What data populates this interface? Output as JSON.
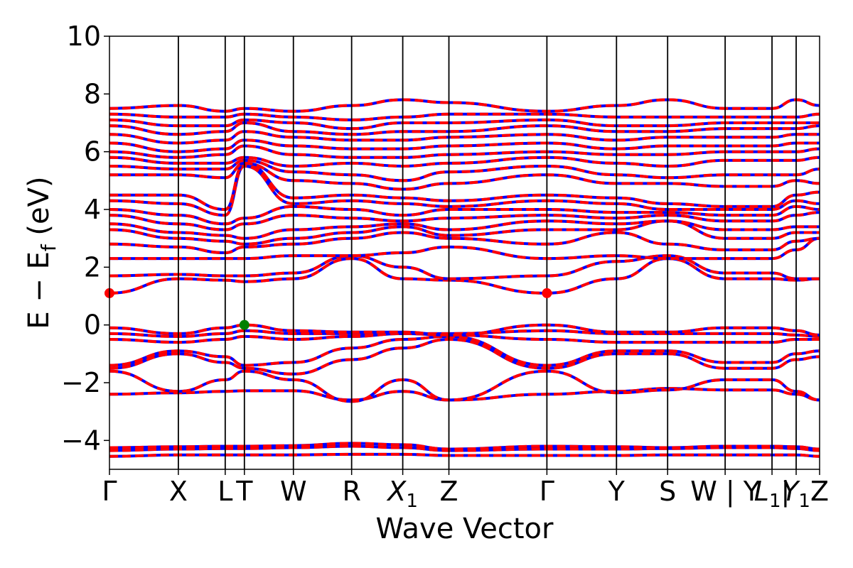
{
  "chart_data": {
    "type": "line",
    "title": "",
    "xlabel": "Wave Vector",
    "ylabel": "E − E",
    "ylabel_subscript": "f",
    "ylabel_unit": " (eV)",
    "ylim": [
      -5,
      10
    ],
    "yticks": [
      -4,
      -2,
      0,
      2,
      4,
      6,
      8,
      10
    ],
    "ytick_labels": [
      "−4",
      "−2",
      "0",
      "2",
      "4",
      "6",
      "8",
      "10"
    ],
    "grid": false,
    "legend": "none",
    "kpath": [
      {
        "label": "Γ",
        "base": "Γ",
        "sub": "",
        "x": 0.0
      },
      {
        "label": "X",
        "base": "X",
        "sub": "",
        "x": 0.097
      },
      {
        "label": "L",
        "base": "L",
        "sub": "",
        "x": 0.163
      },
      {
        "label": "T",
        "base": "T",
        "sub": "",
        "x": 0.19
      },
      {
        "label": "W",
        "base": "W",
        "sub": "",
        "x": 0.259
      },
      {
        "label": "R",
        "base": "R",
        "sub": "",
        "x": 0.341
      },
      {
        "label": "X1",
        "base": "X",
        "sub": "1",
        "x": 0.413
      },
      {
        "label": "Z",
        "base": "Z",
        "sub": "",
        "x": 0.478
      },
      {
        "label": "Γ",
        "base": "Γ",
        "sub": "",
        "x": 0.616
      },
      {
        "label": "Y",
        "base": "Y",
        "sub": "",
        "x": 0.714
      },
      {
        "label": "S",
        "base": "S",
        "sub": "",
        "x": 0.786
      },
      {
        "label": "W | Y",
        "base": "W | Y",
        "sub": "",
        "x": 0.867
      },
      {
        "label": "L1 |",
        "base": "L",
        "sub": "1",
        "suffix": "|",
        "x": 0.933
      },
      {
        "label": "Y1",
        "base": "Y",
        "sub": "1",
        "x": 0.967
      },
      {
        "label": "Z",
        "base": "Z",
        "sub": "",
        "x": 1.0
      }
    ],
    "bands": [
      [
        -4.55,
        -4.5,
        -4.5,
        -4.5,
        -4.5,
        -4.48,
        -4.48,
        -4.52,
        -4.52,
        -4.52,
        -4.5,
        -4.5,
        -4.5,
        -4.5,
        -4.55
      ],
      [
        -4.35,
        -4.3,
        -4.28,
        -4.28,
        -4.25,
        -4.2,
        -4.25,
        -4.35,
        -4.3,
        -4.3,
        -4.28,
        -4.25,
        -4.25,
        -4.28,
        -4.35
      ],
      [
        -4.25,
        -4.22,
        -4.2,
        -4.2,
        -4.18,
        -4.1,
        -4.15,
        -4.3,
        -4.2,
        -4.22,
        -4.25,
        -4.2,
        -4.2,
        -4.22,
        -4.3
      ],
      [
        -2.4,
        -2.35,
        -2.3,
        -2.28,
        -2.28,
        -2.6,
        -2.3,
        -2.6,
        -2.4,
        -2.3,
        -2.2,
        -2.25,
        -2.25,
        -2.4,
        -2.6
      ],
      [
        -1.6,
        -2.3,
        -1.9,
        -1.6,
        -1.9,
        -2.65,
        -1.9,
        -2.6,
        -1.6,
        -2.35,
        -2.25,
        -1.9,
        -1.9,
        -2.3,
        -2.6
      ],
      [
        -1.5,
        -1.0,
        -1.3,
        -1.5,
        -1.7,
        -1.2,
        -0.8,
        -0.5,
        -1.5,
        -1.0,
        -1.0,
        -1.5,
        -1.5,
        -1.2,
        -1.1
      ],
      [
        -1.4,
        -0.9,
        -1.1,
        -1.4,
        -1.3,
        -0.8,
        -0.5,
        -0.4,
        -1.4,
        -0.9,
        -0.9,
        -1.3,
        -1.3,
        -1.0,
        -0.9
      ],
      [
        -0.5,
        -0.6,
        -0.5,
        -0.4,
        -0.5,
        -0.4,
        -0.3,
        -0.35,
        -0.5,
        -0.6,
        -0.6,
        -0.6,
        -0.6,
        -0.5,
        -0.5
      ],
      [
        -0.3,
        -0.4,
        -0.3,
        -0.2,
        -0.3,
        -0.3,
        -0.3,
        -0.3,
        -0.2,
        -0.3,
        -0.3,
        -0.3,
        -0.3,
        -0.35,
        -0.4
      ],
      [
        -0.1,
        -0.3,
        -0.1,
        0.0,
        -0.2,
        -0.25,
        -0.25,
        -0.35,
        0.0,
        -0.25,
        -0.25,
        -0.1,
        -0.1,
        -0.2,
        -0.35
      ],
      [
        1.1,
        1.6,
        1.55,
        1.5,
        1.6,
        2.3,
        1.6,
        1.55,
        1.1,
        1.6,
        2.3,
        1.6,
        1.6,
        1.55,
        1.6
      ],
      [
        1.7,
        1.75,
        1.7,
        1.7,
        1.8,
        2.4,
        2.0,
        1.6,
        1.7,
        2.2,
        2.4,
        1.8,
        1.8,
        1.6,
        1.6
      ],
      [
        2.3,
        2.3,
        2.3,
        2.3,
        2.4,
        2.4,
        2.5,
        2.7,
        2.3,
        2.4,
        2.3,
        2.3,
        2.3,
        2.6,
        3.0
      ],
      [
        2.8,
        2.7,
        2.5,
        2.7,
        2.8,
        3.0,
        3.2,
        3.0,
        2.8,
        3.2,
        2.8,
        2.6,
        2.6,
        2.9,
        3.0
      ],
      [
        3.3,
        3.0,
        2.9,
        2.8,
        3.0,
        3.2,
        3.4,
        3.1,
        3.3,
        3.3,
        3.6,
        3.0,
        3.0,
        3.2,
        3.2
      ],
      [
        3.5,
        3.2,
        3.1,
        3.0,
        3.3,
        3.4,
        3.5,
        3.3,
        3.6,
        3.5,
        3.6,
        3.3,
        3.3,
        3.4,
        3.4
      ],
      [
        3.8,
        3.5,
        3.3,
        3.5,
        3.8,
        3.7,
        3.6,
        3.7,
        3.8,
        3.7,
        3.8,
        3.6,
        3.6,
        3.8,
        3.9
      ],
      [
        4.0,
        3.8,
        3.5,
        3.7,
        4.1,
        4.0,
        3.8,
        4.0,
        4.0,
        3.9,
        3.9,
        3.8,
        3.8,
        4.1,
        4.0
      ],
      [
        4.3,
        4.2,
        3.8,
        5.5,
        4.2,
        4.3,
        4.2,
        4.1,
        4.3,
        4.2,
        4.0,
        4.0,
        4.0,
        4.3,
        4.2
      ],
      [
        4.5,
        4.5,
        4.0,
        5.6,
        4.4,
        4.5,
        4.4,
        4.3,
        4.5,
        4.4,
        4.2,
        4.1,
        4.1,
        4.5,
        4.6
      ],
      [
        5.2,
        5.2,
        5.1,
        5.6,
        5.0,
        4.9,
        4.7,
        4.9,
        5.2,
        4.9,
        4.9,
        4.8,
        4.8,
        5.0,
        4.9
      ],
      [
        5.5,
        5.4,
        5.4,
        5.7,
        5.3,
        5.2,
        5.0,
        5.3,
        5.5,
        5.2,
        5.1,
        5.2,
        5.2,
        5.2,
        5.4
      ],
      [
        5.8,
        5.6,
        5.6,
        5.8,
        5.5,
        5.6,
        5.5,
        5.6,
        5.8,
        5.6,
        5.5,
        5.7,
        5.7,
        5.7,
        5.8
      ],
      [
        6.0,
        5.8,
        5.9,
        6.2,
        5.9,
        5.8,
        5.8,
        5.9,
        6.0,
        5.9,
        5.9,
        6.0,
        6.0,
        6.0,
        6.1
      ],
      [
        6.3,
        6.0,
        6.1,
        6.4,
        6.2,
        6.1,
        6.1,
        6.2,
        6.3,
        6.1,
        6.2,
        6.2,
        6.2,
        6.3,
        6.3
      ],
      [
        6.6,
        6.3,
        6.4,
        6.7,
        6.5,
        6.4,
        6.4,
        6.5,
        6.6,
        6.4,
        6.5,
        6.5,
        6.5,
        6.6,
        6.6
      ],
      [
        6.9,
        6.6,
        6.7,
        7.0,
        6.7,
        6.6,
        6.7,
        6.7,
        6.9,
        6.7,
        6.7,
        6.8,
        6.8,
        6.8,
        6.9
      ],
      [
        7.1,
        6.9,
        6.9,
        7.1,
        7.0,
        6.8,
        7.0,
        7.0,
        7.1,
        6.9,
        6.9,
        7.0,
        7.0,
        7.0,
        7.0
      ],
      [
        7.3,
        7.2,
        7.2,
        7.3,
        7.2,
        7.1,
        7.2,
        7.3,
        7.3,
        7.2,
        7.2,
        7.2,
        7.2,
        7.2,
        7.3
      ],
      [
        7.5,
        7.6,
        7.4,
        7.5,
        7.4,
        7.6,
        7.8,
        7.7,
        7.4,
        7.6,
        7.8,
        7.5,
        7.5,
        7.8,
        7.6
      ]
    ],
    "series": [
      {
        "name": "",
        "color": "#0000ff",
        "style": "solid"
      },
      {
        "name": "",
        "color": "#ff0000",
        "style": "dashed"
      }
    ],
    "markers": [
      {
        "x": 0.0,
        "y": 1.1,
        "color": "#ff0000"
      },
      {
        "x": 0.616,
        "y": 1.1,
        "color": "#ff0000"
      },
      {
        "x": 0.19,
        "y": 0.0,
        "color": "#008000"
      }
    ]
  }
}
